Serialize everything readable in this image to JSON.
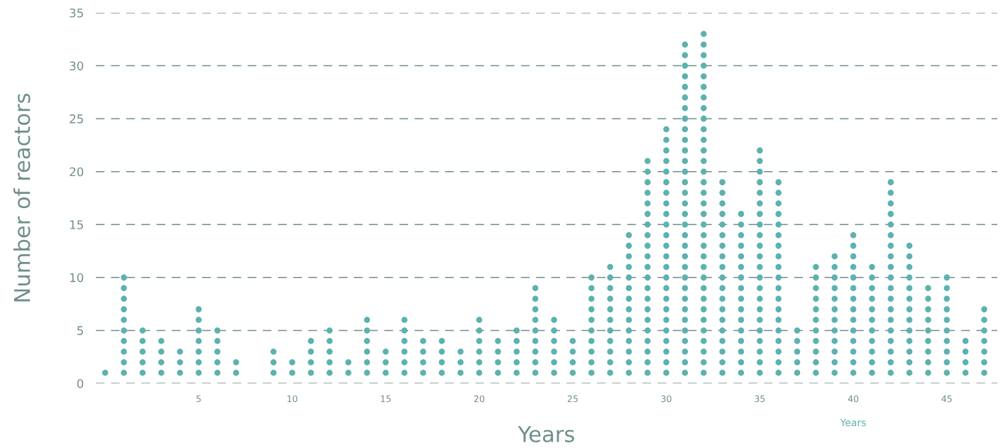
{
  "chart_data": {
    "type": "scatter",
    "xlabel": "Years",
    "ylabel": "Number of reactors",
    "x": [
      0,
      1,
      1,
      1,
      1,
      1,
      1,
      1,
      1,
      1,
      1,
      2,
      2,
      2,
      2,
      2,
      3,
      3,
      3,
      3,
      4,
      4,
      4,
      5,
      5,
      5,
      5,
      5,
      5,
      5,
      6,
      6,
      6,
      6,
      6,
      7,
      7,
      9,
      9,
      9,
      10,
      10,
      11,
      11,
      11,
      11,
      12,
      12,
      12,
      12,
      12,
      13,
      13,
      14,
      14,
      14,
      14,
      14,
      14,
      15,
      15,
      15,
      16,
      16,
      16,
      16,
      16,
      16,
      17,
      17,
      17,
      17,
      18,
      18,
      18,
      18,
      19,
      19,
      19,
      20,
      20,
      20,
      20,
      20,
      20,
      21,
      21,
      21,
      21,
      22,
      22,
      22,
      22,
      22,
      23,
      23,
      23,
      23,
      23,
      23,
      23,
      23,
      23,
      24,
      24,
      24,
      24,
      24,
      24,
      25,
      25,
      25,
      25,
      26,
      26,
      26,
      26,
      26,
      26,
      26,
      26,
      26,
      26,
      27,
      27,
      27,
      27,
      27,
      27,
      27,
      27,
      27,
      27,
      27,
      28,
      28,
      28,
      28,
      28,
      28,
      28,
      28,
      28,
      28,
      28,
      28,
      28,
      28,
      29,
      29,
      29,
      29,
      29,
      29,
      29,
      29,
      29,
      29,
      29,
      29,
      29,
      29,
      29,
      29,
      29,
      29,
      29,
      29,
      29,
      30,
      30,
      30,
      30,
      30,
      30,
      30,
      30,
      30,
      30,
      30,
      30,
      30,
      30,
      30,
      30,
      30,
      30,
      30,
      30,
      30,
      30,
      30,
      30,
      31,
      31,
      31,
      31,
      31,
      31,
      31,
      31,
      31,
      31,
      31,
      31,
      31,
      31,
      31,
      31,
      31,
      31,
      31,
      31,
      31,
      31,
      31,
      31,
      31,
      31,
      31,
      31,
      31,
      31,
      31,
      31,
      32,
      32,
      32,
      32,
      32,
      32,
      32,
      32,
      32,
      32,
      32,
      32,
      32,
      32,
      32,
      32,
      32,
      32,
      32,
      32,
      32,
      32,
      32,
      32,
      32,
      32,
      32,
      32,
      32,
      32,
      32,
      32,
      32,
      33,
      33,
      33,
      33,
      33,
      33,
      33,
      33,
      33,
      33,
      33,
      33,
      33,
      33,
      33,
      33,
      33,
      33,
      33,
      34,
      34,
      34,
      34,
      34,
      34,
      34,
      34,
      34,
      34,
      34,
      34,
      34,
      34,
      34,
      34,
      35,
      35,
      35,
      35,
      35,
      35,
      35,
      35,
      35,
      35,
      35,
      35,
      35,
      35,
      35,
      35,
      35,
      35,
      35,
      35,
      35,
      35,
      36,
      36,
      36,
      36,
      36,
      36,
      36,
      36,
      36,
      36,
      36,
      36,
      36,
      36,
      36,
      36,
      36,
      36,
      36,
      37,
      37,
      37,
      37,
      37,
      38,
      38,
      38,
      38,
      38,
      38,
      38,
      38,
      38,
      38,
      38,
      39,
      39,
      39,
      39,
      39,
      39,
      39,
      39,
      39,
      39,
      39,
      39,
      40,
      40,
      40,
      40,
      40,
      40,
      40,
      40,
      40,
      40,
      40,
      40,
      40,
      40,
      41,
      41,
      41,
      41,
      41,
      41,
      41,
      41,
      41,
      41,
      41,
      42,
      42,
      42,
      42,
      42,
      42,
      42,
      42,
      42,
      42,
      42,
      42,
      42,
      42,
      42,
      42,
      42,
      42,
      42,
      43,
      43,
      43,
      43,
      43,
      43,
      43,
      43,
      43,
      43,
      43,
      43,
      43,
      44,
      44,
      44,
      44,
      44,
      44,
      44,
      44,
      44,
      45,
      45,
      45,
      45,
      45,
      45,
      45,
      45,
      45,
      45,
      46,
      46,
      46,
      46,
      47,
      47,
      47,
      47,
      47,
      47,
      47
    ],
    "values": [
      1,
      1,
      2,
      3,
      4,
      5,
      6,
      7,
      8,
      9,
      10,
      1,
      2,
      3,
      4,
      5,
      1,
      2,
      3,
      4,
      1,
      2,
      3,
      1,
      2,
      3,
      4,
      5,
      6,
      7,
      1,
      2,
      3,
      4,
      5,
      1,
      2,
      1,
      2,
      3,
      1,
      2,
      1,
      2,
      3,
      4,
      1,
      2,
      3,
      4,
      5,
      1,
      2,
      1,
      2,
      3,
      4,
      5,
      6,
      1,
      2,
      3,
      1,
      2,
      3,
      4,
      5,
      6,
      1,
      2,
      3,
      4,
      1,
      2,
      3,
      4,
      1,
      2,
      3,
      1,
      2,
      3,
      4,
      5,
      6,
      1,
      2,
      3,
      4,
      1,
      2,
      3,
      4,
      5,
      1,
      2,
      3,
      4,
      5,
      6,
      7,
      8,
      9,
      1,
      2,
      3,
      4,
      5,
      6,
      1,
      2,
      3,
      4,
      1,
      2,
      3,
      4,
      5,
      6,
      7,
      8,
      9,
      10,
      1,
      2,
      3,
      4,
      5,
      6,
      7,
      8,
      9,
      10,
      11,
      1,
      2,
      3,
      4,
      5,
      6,
      7,
      8,
      9,
      10,
      11,
      12,
      13,
      14,
      1,
      2,
      3,
      4,
      5,
      6,
      7,
      8,
      9,
      10,
      11,
      12,
      13,
      14,
      15,
      16,
      17,
      18,
      19,
      20,
      21,
      1,
      2,
      3,
      4,
      5,
      6,
      7,
      8,
      9,
      10,
      11,
      12,
      13,
      14,
      15,
      16,
      17,
      18,
      19,
      20,
      21,
      22,
      23,
      24,
      1,
      2,
      3,
      4,
      5,
      6,
      7,
      8,
      9,
      10,
      11,
      12,
      13,
      14,
      15,
      16,
      17,
      18,
      19,
      20,
      21,
      22,
      23,
      24,
      25,
      26,
      27,
      28,
      29,
      30,
      31,
      32,
      1,
      2,
      3,
      4,
      5,
      6,
      7,
      8,
      9,
      10,
      11,
      12,
      13,
      14,
      15,
      16,
      17,
      18,
      19,
      20,
      21,
      22,
      23,
      24,
      25,
      26,
      27,
      28,
      29,
      30,
      31,
      32,
      33,
      1,
      2,
      3,
      4,
      5,
      6,
      7,
      8,
      9,
      10,
      11,
      12,
      13,
      14,
      15,
      16,
      17,
      18,
      19,
      1,
      2,
      3,
      4,
      5,
      6,
      7,
      8,
      9,
      10,
      11,
      12,
      13,
      14,
      15,
      16,
      1,
      2,
      3,
      4,
      5,
      6,
      7,
      8,
      9,
      10,
      11,
      12,
      13,
      14,
      15,
      16,
      17,
      18,
      19,
      20,
      21,
      22,
      1,
      2,
      3,
      4,
      5,
      6,
      7,
      8,
      9,
      10,
      11,
      12,
      13,
      14,
      15,
      16,
      17,
      18,
      19,
      1,
      2,
      3,
      4,
      5,
      1,
      2,
      3,
      4,
      5,
      6,
      7,
      8,
      9,
      10,
      11,
      1,
      2,
      3,
      4,
      5,
      6,
      7,
      8,
      9,
      10,
      11,
      12,
      1,
      2,
      3,
      4,
      5,
      6,
      7,
      8,
      9,
      10,
      11,
      12,
      13,
      14,
      1,
      2,
      3,
      4,
      5,
      6,
      7,
      8,
      9,
      10,
      11,
      1,
      2,
      3,
      4,
      5,
      6,
      7,
      8,
      9,
      10,
      11,
      12,
      13,
      14,
      15,
      16,
      17,
      18,
      19,
      1,
      2,
      3,
      4,
      5,
      6,
      7,
      8,
      9,
      10,
      11,
      12,
      13,
      1,
      2,
      3,
      4,
      5,
      6,
      7,
      8,
      9,
      1,
      2,
      3,
      4,
      5,
      6,
      7,
      8,
      9,
      10,
      1,
      2,
      3,
      4,
      1,
      2,
      3,
      4,
      5,
      6,
      7
    ],
    "color": "#5cb2ae",
    "marker": "circle",
    "xlim": [
      -0.5,
      47.7
    ],
    "ylim": [
      0,
      35
    ],
    "xticks": [
      5,
      10,
      15,
      20,
      25,
      30,
      35,
      40,
      45
    ],
    "yticks": [
      0,
      5,
      10,
      15,
      20,
      25,
      30,
      35
    ],
    "grid": "y",
    "annotations": [
      "Years"
    ]
  }
}
